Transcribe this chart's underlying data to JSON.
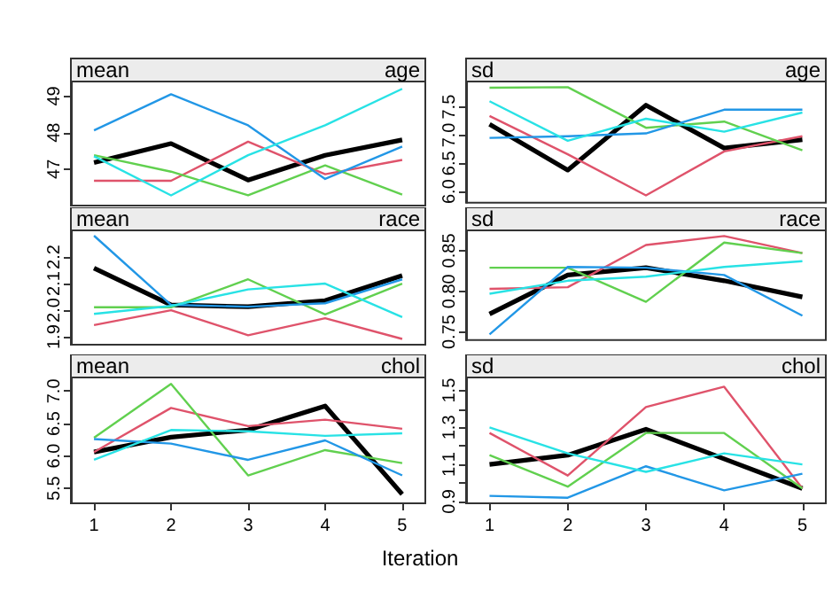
{
  "chart_data": [
    {
      "type": "line",
      "title": "mean",
      "subtitle": "age",
      "x": [
        1,
        2,
        3,
        4,
        5
      ],
      "xlim": [
        0.7,
        5.3
      ],
      "xticks": [
        1,
        2,
        3,
        4,
        5
      ],
      "ylim": [
        46.0,
        49.4
      ],
      "yticks": [
        47,
        48,
        49
      ],
      "tick_labels": "y",
      "series": [
        {
          "color": "#000000",
          "values": [
            47.18,
            47.7,
            46.7,
            47.38,
            47.8
          ]
        },
        {
          "color": "#df536b",
          "values": [
            46.68,
            46.68,
            47.75,
            46.86,
            47.25
          ]
        },
        {
          "color": "#61d04f",
          "values": [
            47.38,
            46.93,
            46.28,
            47.1,
            46.3
          ]
        },
        {
          "color": "#2297e6",
          "values": [
            48.06,
            49.05,
            48.2,
            46.73,
            47.62
          ]
        },
        {
          "color": "#28e2e5",
          "values": [
            47.35,
            46.28,
            47.38,
            48.2,
            49.2
          ]
        }
      ]
    },
    {
      "type": "line",
      "title": "sd",
      "subtitle": "age",
      "x": [
        1,
        2,
        3,
        4,
        5
      ],
      "xlim": [
        0.7,
        5.3
      ],
      "xticks": [
        1,
        2,
        3,
        4,
        5
      ],
      "ylim": [
        5.8,
        7.95
      ],
      "yticks": [
        {
          "value": 6,
          "label": "6.0"
        },
        6.5,
        {
          "value": 7,
          "label": "7.0"
        },
        7.5
      ],
      "tick_labels": "y",
      "series": [
        {
          "color": "#000000",
          "values": [
            7.19,
            6.38,
            7.53,
            6.77,
            6.92
          ]
        },
        {
          "color": "#df536b",
          "values": [
            7.34,
            6.66,
            5.93,
            6.71,
            6.98
          ]
        },
        {
          "color": "#61d04f",
          "values": [
            7.84,
            7.85,
            7.13,
            7.24,
            6.73
          ]
        },
        {
          "color": "#2297e6",
          "values": [
            6.95,
            6.98,
            7.03,
            7.45,
            7.45
          ]
        },
        {
          "color": "#28e2e5",
          "values": [
            7.6,
            6.9,
            7.29,
            7.06,
            7.4
          ]
        }
      ]
    },
    {
      "type": "line",
      "title": "mean",
      "subtitle": "race",
      "x": [
        1,
        2,
        3,
        4,
        5
      ],
      "xlim": [
        0.7,
        5.3
      ],
      "xticks": [
        1,
        2,
        3,
        4,
        5
      ],
      "ylim": [
        1.87,
        2.3
      ],
      "yticks": [
        1.9,
        {
          "value": 2,
          "label": "2.0"
        },
        2.1,
        2.2
      ],
      "tick_labels": "y",
      "series": [
        {
          "color": "#000000",
          "values": [
            2.158,
            2.02,
            2.013,
            2.036,
            2.13
          ]
        },
        {
          "color": "#df536b",
          "values": [
            1.944,
            2.0,
            1.906,
            1.97,
            1.892
          ]
        },
        {
          "color": "#61d04f",
          "values": [
            2.011,
            2.011,
            2.116,
            1.984,
            2.1
          ]
        },
        {
          "color": "#2297e6",
          "values": [
            2.28,
            2.02,
            2.013,
            2.026,
            2.116
          ]
        },
        {
          "color": "#28e2e5",
          "values": [
            1.986,
            2.016,
            2.078,
            2.1,
            1.974
          ]
        }
      ]
    },
    {
      "type": "line",
      "title": "sd",
      "subtitle": "race",
      "x": [
        1,
        2,
        3,
        4,
        5
      ],
      "xlim": [
        0.7,
        5.3
      ],
      "xticks": [
        1,
        2,
        3,
        4,
        5
      ],
      "ylim": [
        0.74,
        0.875
      ],
      "yticks": [
        0.75,
        {
          "value": 0.8,
          "label": "0.80"
        },
        0.85
      ],
      "tick_labels": "y",
      "series": [
        {
          "color": "#000000",
          "values": [
            0.772,
            0.82,
            0.829,
            0.813,
            0.793
          ]
        },
        {
          "color": "#df536b",
          "values": [
            0.803,
            0.805,
            0.857,
            0.868,
            0.847
          ]
        },
        {
          "color": "#61d04f",
          "values": [
            0.829,
            0.829,
            0.787,
            0.86,
            0.847
          ]
        },
        {
          "color": "#2297e6",
          "values": [
            0.747,
            0.83,
            0.829,
            0.82,
            0.77
          ]
        },
        {
          "color": "#28e2e5",
          "values": [
            0.797,
            0.813,
            0.818,
            0.83,
            0.837
          ]
        }
      ]
    },
    {
      "type": "line",
      "title": "mean",
      "subtitle": "chol",
      "xlabel": "Iteration",
      "x": [
        1,
        2,
        3,
        4,
        5
      ],
      "xlim": [
        0.7,
        5.3
      ],
      "xticks": [
        1,
        2,
        3,
        4,
        5
      ],
      "ylim": [
        5.27,
        7.21
      ],
      "yticks": [
        5.5,
        {
          "value": 6,
          "label": "6.0"
        },
        6.5,
        {
          "value": 7,
          "label": "7.0"
        }
      ],
      "series": [
        {
          "color": "#000000",
          "values": [
            6.06,
            6.29,
            6.4,
            6.77,
            5.41
          ]
        },
        {
          "color": "#df536b",
          "values": [
            6.06,
            6.74,
            6.46,
            6.56,
            6.42
          ]
        },
        {
          "color": "#61d04f",
          "values": [
            6.28,
            7.11,
            5.7,
            6.09,
            5.89
          ]
        },
        {
          "color": "#2297e6",
          "values": [
            6.26,
            6.19,
            5.94,
            6.24,
            5.7
          ]
        },
        {
          "color": "#28e2e5",
          "values": [
            5.94,
            6.4,
            6.38,
            6.31,
            6.35
          ]
        }
      ]
    },
    {
      "type": "line",
      "title": "sd",
      "subtitle": "chol",
      "x": [
        1,
        2,
        3,
        4,
        5
      ],
      "xlim": [
        0.7,
        5.3
      ],
      "xticks": [
        1,
        2,
        3,
        4,
        5
      ],
      "ylim": [
        0.89,
        1.57
      ],
      "yticks": [
        0.9,
        {
          "value": 1.0,
          "label": null
        },
        1.1,
        {
          "value": 1.2,
          "label": null
        },
        1.3,
        {
          "value": 1.4,
          "label": null
        },
        1.5
      ],
      "series": [
        {
          "color": "#000000",
          "values": [
            1.1,
            1.15,
            1.29,
            1.13,
            0.97
          ]
        },
        {
          "color": "#df536b",
          "values": [
            1.27,
            1.04,
            1.41,
            1.52,
            0.97
          ]
        },
        {
          "color": "#61d04f",
          "values": [
            1.15,
            0.98,
            1.27,
            1.27,
            0.97
          ]
        },
        {
          "color": "#2297e6",
          "values": [
            0.93,
            0.92,
            1.09,
            0.96,
            1.05
          ]
        },
        {
          "color": "#28e2e5",
          "values": [
            1.3,
            1.16,
            1.06,
            1.16,
            1.1
          ]
        }
      ]
    }
  ]
}
